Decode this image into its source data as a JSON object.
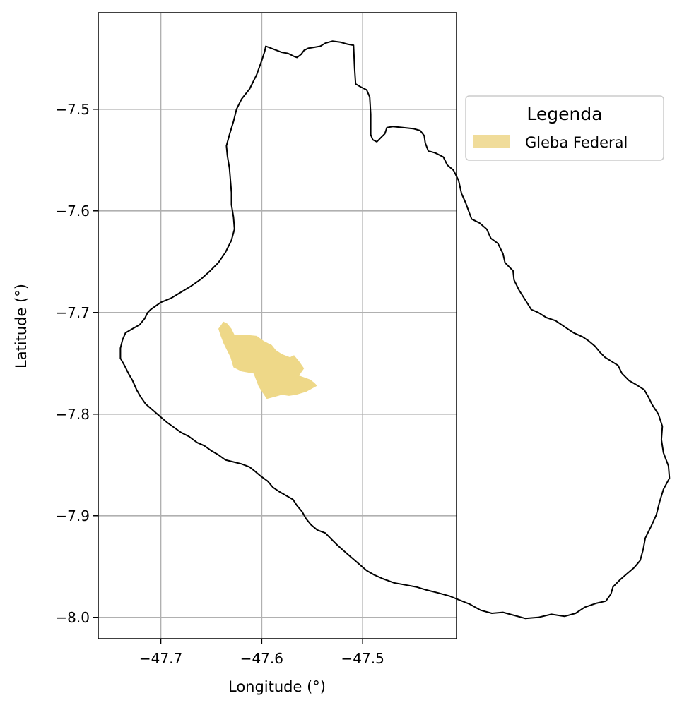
{
  "chart_data": {
    "type": "map",
    "xlabel": "Longitude (°)",
    "ylabel": "Latitude (°)",
    "xlim": [
      -47.762,
      -47.407
    ],
    "ylim": [
      -8.021,
      -7.405
    ],
    "grid": true,
    "x_ticks": [
      {
        "value": -47.7,
        "label": "−47.7"
      },
      {
        "value": -47.6,
        "label": "−47.6"
      },
      {
        "value": -47.5,
        "label": "−47.5"
      }
    ],
    "y_ticks": [
      {
        "value": -7.5,
        "label": "−7.5"
      },
      {
        "value": -7.6,
        "label": "−7.6"
      },
      {
        "value": -7.7,
        "label": "−7.7"
      },
      {
        "value": -7.8,
        "label": "−7.8"
      },
      {
        "value": -7.9,
        "label": "−7.9"
      },
      {
        "value": -8.0,
        "label": "−8.0"
      }
    ],
    "legend": {
      "title": "Legenda",
      "placement": "outside-right-top",
      "entries": [
        {
          "label": "Gleba Federal",
          "color": "#f0dc9a"
        }
      ]
    },
    "colors": {
      "boundary": "#000000",
      "gleba": "#eed888",
      "grid": "#b0b0b0"
    },
    "boundary": [
      [
        -47.596,
        -7.438
      ],
      [
        -47.588,
        -7.441
      ],
      [
        -47.58,
        -7.444
      ],
      [
        -47.574,
        -7.445
      ],
      [
        -47.568,
        -7.448
      ],
      [
        -47.565,
        -7.449
      ],
      [
        -47.561,
        -7.446
      ],
      [
        -47.558,
        -7.442
      ],
      [
        -47.554,
        -7.44
      ],
      [
        -47.548,
        -7.439
      ],
      [
        -47.542,
        -7.438
      ],
      [
        -47.537,
        -7.435
      ],
      [
        -47.53,
        -7.433
      ],
      [
        -47.522,
        -7.434
      ],
      [
        -47.515,
        -7.436
      ],
      [
        -47.509,
        -7.437
      ],
      [
        -47.508,
        -7.46
      ],
      [
        -47.507,
        -7.475
      ],
      [
        -47.502,
        -7.478
      ],
      [
        -47.496,
        -7.481
      ],
      [
        -47.493,
        -7.488
      ],
      [
        -47.492,
        -7.505
      ],
      [
        -47.492,
        -7.525
      ],
      [
        -47.49,
        -7.53
      ],
      [
        -47.486,
        -7.532
      ],
      [
        -47.482,
        -7.528
      ],
      [
        -47.478,
        -7.524
      ],
      [
        -47.476,
        -7.518
      ],
      [
        -47.47,
        -7.517
      ],
      [
        -47.46,
        -7.518
      ],
      [
        -47.45,
        -7.519
      ],
      [
        -47.443,
        -7.521
      ],
      [
        -47.439,
        -7.526
      ],
      [
        -47.438,
        -7.533
      ],
      [
        -47.435,
        -7.541
      ],
      [
        -47.428,
        -7.543
      ],
      [
        -47.42,
        -7.547
      ],
      [
        -47.416,
        -7.555
      ],
      [
        -47.41,
        -7.56
      ],
      [
        -47.405,
        -7.57
      ],
      [
        -47.402,
        -7.583
      ],
      [
        -47.398,
        -7.592
      ],
      [
        -47.395,
        -7.6
      ],
      [
        -47.392,
        -7.608
      ],
      [
        -47.384,
        -7.612
      ],
      [
        -47.377,
        -7.618
      ],
      [
        -47.373,
        -7.627
      ],
      [
        -47.366,
        -7.632
      ],
      [
        -47.361,
        -7.642
      ],
      [
        -47.359,
        -7.651
      ],
      [
        -47.351,
        -7.659
      ],
      [
        -47.35,
        -7.668
      ],
      [
        -47.345,
        -7.678
      ],
      [
        -47.338,
        -7.689
      ],
      [
        -47.333,
        -7.697
      ],
      [
        -47.326,
        -7.7
      ],
      [
        -47.318,
        -7.705
      ],
      [
        -47.309,
        -7.708
      ],
      [
        -47.3,
        -7.714
      ],
      [
        -47.291,
        -7.72
      ],
      [
        -47.282,
        -7.724
      ],
      [
        -47.276,
        -7.728
      ],
      [
        -47.27,
        -7.733
      ],
      [
        -47.265,
        -7.739
      ],
      [
        -47.26,
        -7.744
      ],
      [
        -47.252,
        -7.749
      ],
      [
        -47.247,
        -7.752
      ],
      [
        -47.243,
        -7.76
      ],
      [
        -47.236,
        -7.767
      ],
      [
        -47.229,
        -7.771
      ],
      [
        -47.221,
        -7.776
      ],
      [
        -47.217,
        -7.783
      ],
      [
        -47.213,
        -7.791
      ],
      [
        -47.207,
        -7.8
      ],
      [
        -47.203,
        -7.812
      ],
      [
        -47.204,
        -7.825
      ],
      [
        -47.202,
        -7.838
      ],
      [
        -47.197,
        -7.851
      ],
      [
        -47.196,
        -7.863
      ],
      [
        -47.202,
        -7.874
      ],
      [
        -47.206,
        -7.887
      ],
      [
        -47.209,
        -7.899
      ],
      [
        -47.214,
        -7.91
      ],
      [
        -47.22,
        -7.922
      ],
      [
        -47.222,
        -7.933
      ],
      [
        -47.225,
        -7.944
      ],
      [
        -47.231,
        -7.951
      ],
      [
        -47.238,
        -7.957
      ],
      [
        -47.245,
        -7.963
      ],
      [
        -47.252,
        -7.97
      ],
      [
        -47.254,
        -7.977
      ],
      [
        -47.259,
        -7.984
      ],
      [
        -47.268,
        -7.986
      ],
      [
        -47.28,
        -7.99
      ],
      [
        -47.289,
        -7.996
      ],
      [
        -47.3,
        -7.999
      ],
      [
        -47.313,
        -7.997
      ],
      [
        -47.326,
        -8.0
      ],
      [
        -47.339,
        -8.001
      ],
      [
        -47.35,
        -7.998
      ],
      [
        -47.361,
        -7.995
      ],
      [
        -47.372,
        -7.996
      ],
      [
        -47.383,
        -7.993
      ],
      [
        -47.394,
        -7.987
      ],
      [
        -47.404,
        -7.983
      ],
      [
        -47.414,
        -7.979
      ],
      [
        -47.425,
        -7.976
      ],
      [
        -47.437,
        -7.973
      ],
      [
        -47.447,
        -7.97
      ],
      [
        -47.458,
        -7.968
      ],
      [
        -47.469,
        -7.966
      ],
      [
        -47.48,
        -7.962
      ],
      [
        -47.489,
        -7.958
      ],
      [
        -47.496,
        -7.954
      ],
      [
        -47.503,
        -7.948
      ],
      [
        -47.51,
        -7.942
      ],
      [
        -47.517,
        -7.936
      ],
      [
        -47.525,
        -7.929
      ],
      [
        -47.531,
        -7.923
      ],
      [
        -47.537,
        -7.917
      ],
      [
        -47.545,
        -7.914
      ],
      [
        -47.551,
        -7.909
      ],
      [
        -47.556,
        -7.903
      ],
      [
        -47.56,
        -7.896
      ],
      [
        -47.565,
        -7.89
      ],
      [
        -47.569,
        -7.884
      ],
      [
        -47.576,
        -7.88
      ],
      [
        -47.583,
        -7.876
      ],
      [
        -47.589,
        -7.872
      ],
      [
        -47.594,
        -7.866
      ],
      [
        -47.601,
        -7.861
      ],
      [
        -47.607,
        -7.856
      ],
      [
        -47.612,
        -7.852
      ],
      [
        -47.62,
        -7.849
      ],
      [
        -47.628,
        -7.847
      ],
      [
        -47.636,
        -7.845
      ],
      [
        -47.643,
        -7.84
      ],
      [
        -47.65,
        -7.836
      ],
      [
        -47.657,
        -7.831
      ],
      [
        -47.664,
        -7.828
      ],
      [
        -47.672,
        -7.822
      ],
      [
        -47.68,
        -7.818
      ],
      [
        -47.687,
        -7.813
      ],
      [
        -47.694,
        -7.808
      ],
      [
        -47.701,
        -7.802
      ],
      [
        -47.708,
        -7.796
      ],
      [
        -47.715,
        -7.79
      ],
      [
        -47.72,
        -7.783
      ],
      [
        -47.724,
        -7.776
      ],
      [
        -47.728,
        -7.767
      ],
      [
        -47.732,
        -7.76
      ],
      [
        -47.736,
        -7.752
      ],
      [
        -47.74,
        -7.745
      ],
      [
        -47.74,
        -7.735
      ],
      [
        -47.738,
        -7.727
      ],
      [
        -47.735,
        -7.72
      ],
      [
        -47.728,
        -7.716
      ],
      [
        -47.721,
        -7.712
      ],
      [
        -47.716,
        -7.706
      ],
      [
        -47.713,
        -7.7
      ],
      [
        -47.71,
        -7.697
      ],
      [
        -47.7,
        -7.69
      ],
      [
        -47.69,
        -7.686
      ],
      [
        -47.68,
        -7.68
      ],
      [
        -47.67,
        -7.674
      ],
      [
        -47.66,
        -7.667
      ],
      [
        -47.651,
        -7.659
      ],
      [
        -47.643,
        -7.651
      ],
      [
        -47.636,
        -7.641
      ],
      [
        -47.63,
        -7.629
      ],
      [
        -47.627,
        -7.618
      ],
      [
        -47.628,
        -7.606
      ],
      [
        -47.63,
        -7.594
      ],
      [
        -47.63,
        -7.582
      ],
      [
        -47.631,
        -7.57
      ],
      [
        -47.632,
        -7.558
      ],
      [
        -47.634,
        -7.546
      ],
      [
        -47.635,
        -7.536
      ],
      [
        -47.632,
        -7.525
      ],
      [
        -47.628,
        -7.512
      ],
      [
        -47.625,
        -7.5
      ],
      [
        -47.62,
        -7.49
      ],
      [
        -47.612,
        -7.48
      ],
      [
        -47.605,
        -7.466
      ],
      [
        -47.6,
        -7.452
      ],
      [
        -47.597,
        -7.443
      ],
      [
        -47.596,
        -7.438
      ]
    ],
    "gleba_federal": [
      [
        -47.643,
        -7.716
      ],
      [
        -47.64,
        -7.712
      ],
      [
        -47.638,
        -7.709
      ],
      [
        -47.634,
        -7.711
      ],
      [
        -47.63,
        -7.716
      ],
      [
        -47.627,
        -7.722
      ],
      [
        -47.615,
        -7.722
      ],
      [
        -47.605,
        -7.723
      ],
      [
        -47.598,
        -7.728
      ],
      [
        -47.59,
        -7.732
      ],
      [
        -47.586,
        -7.737
      ],
      [
        -47.58,
        -7.741
      ],
      [
        -47.572,
        -7.744
      ],
      [
        -47.568,
        -7.742
      ],
      [
        -47.563,
        -7.748
      ],
      [
        -47.558,
        -7.755
      ],
      [
        -47.563,
        -7.762
      ],
      [
        -47.552,
        -7.766
      ],
      [
        -47.548,
        -7.769
      ],
      [
        -47.545,
        -7.772
      ],
      [
        -47.556,
        -7.778
      ],
      [
        -47.566,
        -7.781
      ],
      [
        -47.573,
        -7.782
      ],
      [
        -47.58,
        -7.781
      ],
      [
        -47.587,
        -7.783
      ],
      [
        -47.595,
        -7.785
      ],
      [
        -47.603,
        -7.773
      ],
      [
        -47.608,
        -7.76
      ],
      [
        -47.62,
        -7.758
      ],
      [
        -47.628,
        -7.754
      ],
      [
        -47.631,
        -7.744
      ],
      [
        -47.638,
        -7.73
      ],
      [
        -47.641,
        -7.722
      ],
      [
        -47.643,
        -7.716
      ]
    ]
  }
}
